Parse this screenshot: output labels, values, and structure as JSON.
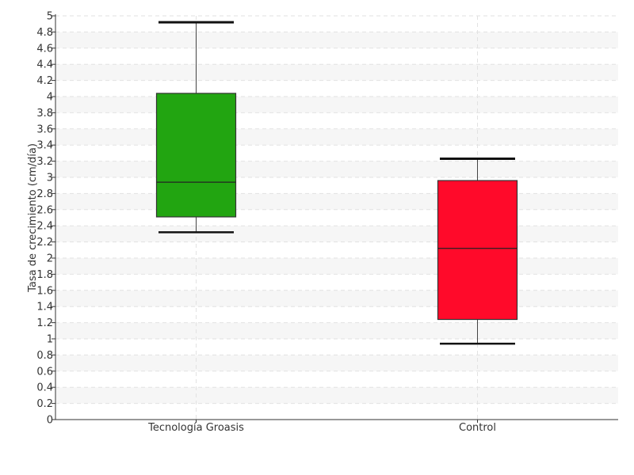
{
  "chart_data": {
    "type": "boxplot",
    "ylabel": "Tasa de crecimiento (cm/día)",
    "ylim": [
      0,
      5
    ],
    "ytick_step": 0.2,
    "yticks": [
      "0",
      "0.2",
      "0.4",
      "0.6",
      "0.8",
      "1",
      "1.2",
      "1.4",
      "1.6",
      "1.8",
      "2",
      "2.2",
      "2.4",
      "2.6",
      "2.8",
      "3",
      "3.2",
      "3.4",
      "3.6",
      "3.8",
      "4",
      "4.2",
      "4.4",
      "4.6",
      "4.8",
      "5"
    ],
    "grid": true,
    "categories": [
      "Tecnología Groasis",
      "Control"
    ],
    "series": [
      {
        "category": "Tecnología Groasis",
        "min": 2.32,
        "q1": 2.51,
        "median": 2.94,
        "q3": 4.04,
        "max": 4.92,
        "color": "#22a511"
      },
      {
        "category": "Control",
        "min": 0.94,
        "q1": 1.24,
        "median": 2.12,
        "q3": 2.96,
        "max": 3.23,
        "color": "#ff0a2a"
      }
    ]
  }
}
